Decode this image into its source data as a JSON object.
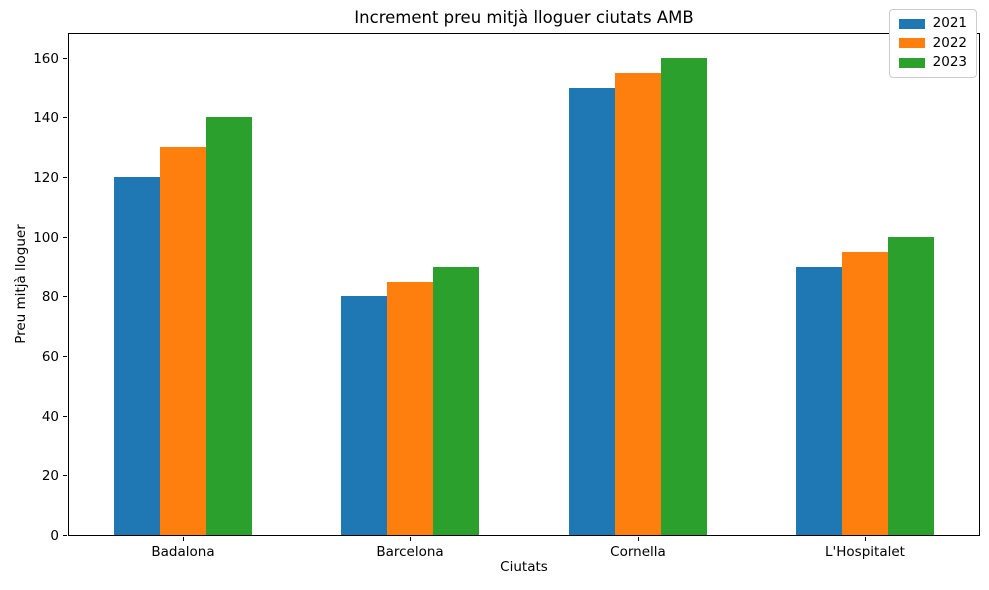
{
  "chart_data": {
    "type": "bar",
    "title": "Increment preu mitjà lloguer ciutats AMB",
    "xlabel": "Ciutats",
    "ylabel": "Preu mitjà lloguer",
    "categories": [
      "Badalona",
      "Barcelona",
      "Cornella",
      "L'Hospitalet"
    ],
    "series": [
      {
        "name": "2021",
        "color": "#1f77b4",
        "values": [
          120,
          80,
          150,
          90
        ]
      },
      {
        "name": "2022",
        "color": "#ff7f0e",
        "values": [
          130,
          85,
          155,
          95
        ]
      },
      {
        "name": "2023",
        "color": "#2ca02c",
        "values": [
          140,
          90,
          160,
          100
        ]
      }
    ],
    "yticks": [
      0,
      20,
      40,
      60,
      80,
      100,
      120,
      140,
      160
    ],
    "ylim": [
      0,
      168
    ],
    "grid": false,
    "legend_position": "upper right",
    "plot_background": "#ffffff",
    "spine_color": "#000000"
  }
}
